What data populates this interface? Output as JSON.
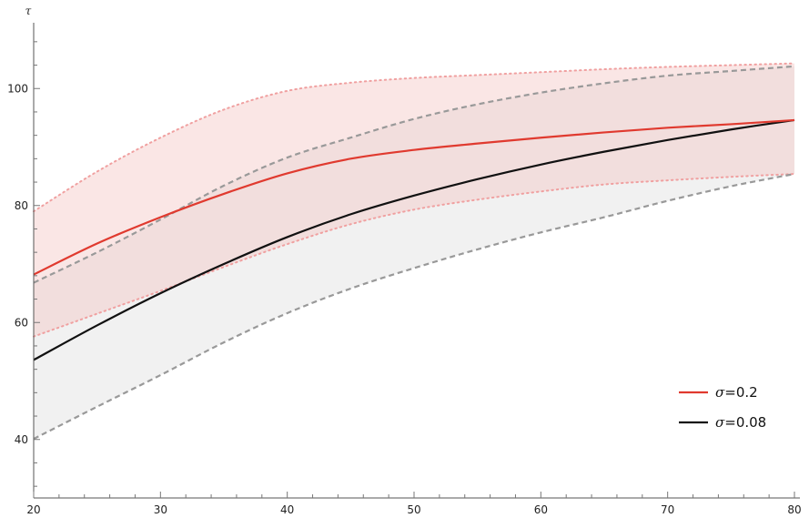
{
  "chart_data": {
    "type": "line",
    "xlabel": "",
    "ylabel": "τ",
    "xlim": [
      20,
      80
    ],
    "ylim": [
      30,
      110
    ],
    "xticks": [
      20,
      30,
      40,
      50,
      60,
      70,
      80
    ],
    "yticks": [
      40,
      60,
      80,
      100
    ],
    "legend_position": "bottom-right",
    "series": [
      {
        "name": "σ=0.2",
        "legend_symbol": "σ",
        "legend_value": "=0.2",
        "color": "#e03a2f",
        "band_color": "#f5c8c5",
        "x": [
          20,
          25,
          30,
          35,
          40,
          45,
          50,
          55,
          60,
          65,
          70,
          75,
          80
        ],
        "y": [
          68.2,
          73.5,
          78.0,
          82.0,
          85.5,
          88.0,
          89.5,
          90.6,
          91.6,
          92.5,
          93.3,
          93.9,
          94.6
        ],
        "lower": [
          57.6,
          61.5,
          65.4,
          69.5,
          73.4,
          76.8,
          79.3,
          81.0,
          82.4,
          83.6,
          84.3,
          84.9,
          85.4
        ],
        "upper": [
          79.0,
          85.8,
          91.6,
          96.4,
          99.6,
          101.0,
          101.8,
          102.3,
          102.8,
          103.3,
          103.7,
          104.0,
          104.3
        ]
      },
      {
        "name": "σ=0.08",
        "legend_symbol": "σ",
        "legend_value": "=0.08",
        "color": "#111111",
        "band_color": "#e6e6e6",
        "x": [
          20,
          25,
          30,
          35,
          40,
          45,
          50,
          55,
          60,
          65,
          70,
          75,
          80
        ],
        "y": [
          53.6,
          59.5,
          65.0,
          70.0,
          74.6,
          78.5,
          81.7,
          84.5,
          87.0,
          89.2,
          91.2,
          93.0,
          94.6
        ],
        "lower": [
          40.1,
          45.6,
          51.0,
          56.6,
          61.6,
          65.8,
          69.3,
          72.5,
          75.4,
          78.0,
          80.8,
          83.3,
          85.4
        ],
        "upper": [
          66.8,
          72.0,
          77.6,
          83.4,
          88.2,
          91.6,
          94.8,
          97.3,
          99.3,
          100.9,
          102.2,
          103.0,
          103.8
        ]
      }
    ]
  }
}
